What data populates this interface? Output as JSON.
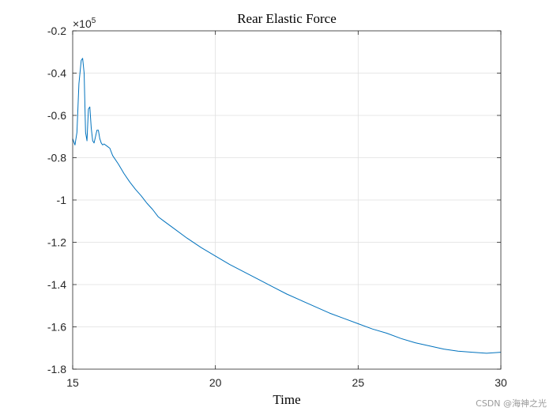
{
  "chart_data": {
    "type": "line",
    "title": "Rear Elastic Force",
    "xlabel": "Time",
    "ylabel": "",
    "xlim": [
      15,
      30
    ],
    "ylim": [
      -180000,
      -20000
    ],
    "grid": true,
    "y_exponent_label": {
      "base": "×10",
      "exp": "5"
    },
    "x_ticks": [
      15,
      20,
      25,
      30
    ],
    "x_tick_labels": [
      "15",
      "20",
      "25",
      "30"
    ],
    "y_ticks": [
      -20000,
      -40000,
      -60000,
      -80000,
      -100000,
      -120000,
      -140000,
      -160000,
      -180000
    ],
    "y_tick_labels": [
      "-0.2",
      "-0.4",
      "-0.6",
      "-0.8",
      "-1",
      "-1.2",
      "-1.4",
      "-1.6",
      "-1.8"
    ],
    "series": [
      {
        "name": "Rear Elastic Force",
        "color": "#0072bd",
        "x": [
          15.0,
          15.08,
          15.15,
          15.22,
          15.3,
          15.35,
          15.4,
          15.45,
          15.5,
          15.55,
          15.6,
          15.65,
          15.7,
          15.75,
          15.8,
          15.85,
          15.9,
          15.95,
          16.0,
          16.05,
          16.1,
          16.2,
          16.3,
          16.4,
          16.6,
          16.8,
          17.0,
          17.2,
          17.4,
          17.6,
          17.8,
          18.0,
          18.2,
          18.5,
          19.0,
          19.5,
          20.0,
          20.5,
          21.0,
          21.5,
          22.0,
          22.5,
          23.0,
          23.5,
          24.0,
          24.5,
          25.0,
          25.5,
          26.0,
          26.5,
          27.0,
          27.5,
          28.0,
          28.5,
          29.0,
          29.5,
          30.0
        ],
        "values": [
          -71000,
          -74000,
          -68000,
          -45000,
          -34000,
          -33000,
          -40000,
          -68000,
          -72000,
          -57000,
          -56000,
          -66000,
          -72000,
          -73000,
          -70000,
          -67000,
          -67000,
          -71000,
          -73000,
          -74000,
          -73500,
          -74500,
          -75500,
          -79000,
          -83000,
          -87500,
          -91500,
          -95000,
          -98000,
          -101500,
          -104500,
          -108000,
          -110000,
          -113000,
          -118000,
          -122500,
          -126500,
          -130500,
          -134000,
          -137500,
          -141000,
          -144500,
          -147500,
          -150500,
          -153500,
          -156000,
          -158500,
          -161000,
          -163000,
          -165500,
          -167500,
          -169000,
          -170500,
          -171500,
          -172000,
          -172500,
          -172000
        ]
      }
    ]
  },
  "watermark": "CSDN @海神之光"
}
